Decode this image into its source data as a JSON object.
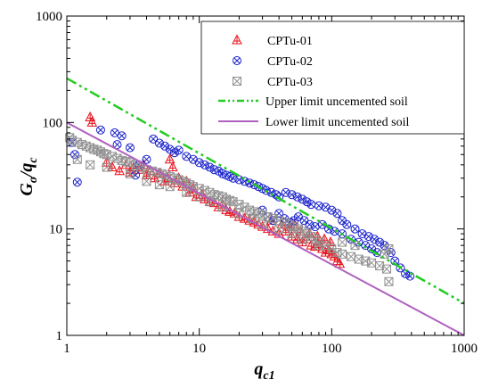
{
  "chart_data": {
    "type": "scatter",
    "xscale": "log",
    "yscale": "log",
    "xlim": [
      1,
      1000
    ],
    "ylim": [
      1,
      1000
    ],
    "xticks": [
      "1",
      "10",
      "100",
      "1000"
    ],
    "yticks": [
      "1",
      "10",
      "100",
      "1000"
    ],
    "xlabel": {
      "main": "q",
      "sub": "c1"
    },
    "ylabel": {
      "main": "G",
      "sub1": "o",
      "mid": "/q",
      "sub2": "c"
    },
    "legend_position": "top-right",
    "series": [
      {
        "name": "CPTu-01",
        "marker": "triangle-cross",
        "color": "#e8101a",
        "points": [
          [
            1.5,
            112
          ],
          [
            1.55,
            100
          ],
          [
            2.0,
            42
          ],
          [
            2.2,
            38
          ],
          [
            2.5,
            35
          ],
          [
            2.8,
            40
          ],
          [
            3.0,
            34
          ],
          [
            3.2,
            38
          ],
          [
            3.5,
            36
          ],
          [
            3.8,
            40
          ],
          [
            4.0,
            32
          ],
          [
            4.3,
            35
          ],
          [
            4.6,
            30
          ],
          [
            5.0,
            33
          ],
          [
            5.5,
            28
          ],
          [
            5.8,
            30
          ],
          [
            6.0,
            45
          ],
          [
            6.3,
            38
          ],
          [
            6.5,
            27
          ],
          [
            7.0,
            30
          ],
          [
            7.5,
            25
          ],
          [
            8.0,
            28
          ],
          [
            8.5,
            22
          ],
          [
            9.0,
            24
          ],
          [
            9.5,
            20
          ],
          [
            10.5,
            21
          ],
          [
            11.0,
            19
          ],
          [
            12.0,
            18
          ],
          [
            13.0,
            17.5
          ],
          [
            14.0,
            16
          ],
          [
            15.0,
            17
          ],
          [
            16.0,
            15
          ],
          [
            17.0,
            14.5
          ],
          [
            18.5,
            14
          ],
          [
            20.0,
            13
          ],
          [
            22.0,
            12.5
          ],
          [
            24.0,
            12
          ],
          [
            26.0,
            11.5
          ],
          [
            28.0,
            11
          ],
          [
            30.0,
            10.5
          ],
          [
            33.0,
            10
          ],
          [
            36.0,
            9.5
          ],
          [
            40.0,
            9
          ],
          [
            45.0,
            9.5
          ],
          [
            50.0,
            8.5
          ],
          [
            55.0,
            8
          ],
          [
            60.0,
            7.5
          ],
          [
            65.0,
            8
          ],
          [
            70.0,
            7
          ],
          [
            75.0,
            6.8
          ],
          [
            80.0,
            7.2
          ],
          [
            85.0,
            6.5
          ],
          [
            90.0,
            6.0
          ],
          [
            95.0,
            6.3
          ],
          [
            100.0,
            5.8
          ],
          [
            105.0,
            5.5
          ],
          [
            110.0,
            5.0
          ],
          [
            115.0,
            4.7
          ],
          [
            35.0,
            12
          ],
          [
            42.0,
            11
          ],
          [
            48.0,
            10.5
          ],
          [
            52.0,
            11
          ],
          [
            58.0,
            9.5
          ],
          [
            68.0,
            9
          ],
          [
            78.0,
            8.5
          ],
          [
            88.0,
            8
          ],
          [
            98.0,
            7.5
          ]
        ]
      },
      {
        "name": "CPTu-02",
        "marker": "circle-x",
        "color": "#1a22cc",
        "points": [
          [
            1.1,
            65
          ],
          [
            1.15,
            50
          ],
          [
            1.2,
            27.5
          ],
          [
            1.8,
            85
          ],
          [
            2.3,
            80
          ],
          [
            2.4,
            62
          ],
          [
            2.6,
            75
          ],
          [
            3.0,
            58
          ],
          [
            3.3,
            32
          ],
          [
            3.5,
            40
          ],
          [
            4.0,
            45
          ],
          [
            4.5,
            70
          ],
          [
            5.0,
            64
          ],
          [
            5.5,
            60
          ],
          [
            6.0,
            56
          ],
          [
            6.5,
            52
          ],
          [
            7.0,
            55
          ],
          [
            8.0,
            48
          ],
          [
            9.0,
            45
          ],
          [
            10.0,
            42
          ],
          [
            11.0,
            40
          ],
          [
            12.0,
            38
          ],
          [
            13.0,
            36
          ],
          [
            14.0,
            35
          ],
          [
            15.0,
            33
          ],
          [
            16.0,
            32
          ],
          [
            17.0,
            31
          ],
          [
            18.0,
            30
          ],
          [
            20.0,
            29
          ],
          [
            22.0,
            28
          ],
          [
            24.0,
            27
          ],
          [
            26.0,
            26
          ],
          [
            28.0,
            25
          ],
          [
            30.0,
            24
          ],
          [
            32.0,
            23
          ],
          [
            35.0,
            22
          ],
          [
            38.0,
            21
          ],
          [
            40.0,
            20
          ],
          [
            45.0,
            22
          ],
          [
            50.0,
            21
          ],
          [
            55.0,
            20
          ],
          [
            60.0,
            19
          ],
          [
            65.0,
            18
          ],
          [
            70.0,
            17
          ],
          [
            80.0,
            16.5
          ],
          [
            90.0,
            16
          ],
          [
            100.0,
            15
          ],
          [
            110.0,
            14
          ],
          [
            120.0,
            12
          ],
          [
            130.0,
            11
          ],
          [
            150.0,
            10
          ],
          [
            170.0,
            9
          ],
          [
            190.0,
            8.5
          ],
          [
            210.0,
            8
          ],
          [
            230.0,
            7.5
          ],
          [
            250.0,
            7
          ],
          [
            280.0,
            6
          ],
          [
            300.0,
            5
          ],
          [
            330.0,
            4.3
          ],
          [
            360.0,
            3.8
          ],
          [
            390.0,
            3.6
          ],
          [
            30.0,
            15
          ],
          [
            33.0,
            13
          ],
          [
            36.0,
            12
          ],
          [
            40.0,
            14
          ],
          [
            44.0,
            12.5
          ],
          [
            48.0,
            11.5
          ],
          [
            52.0,
            12
          ],
          [
            56.0,
            13
          ],
          [
            62.0,
            12
          ],
          [
            68.0,
            11
          ],
          [
            75.0,
            10.5
          ],
          [
            85.0,
            11
          ],
          [
            95.0,
            10
          ],
          [
            105.0,
            9.5
          ],
          [
            120.0,
            9
          ],
          [
            140.0,
            8
          ],
          [
            160.0,
            7.5
          ],
          [
            180.0,
            7
          ],
          [
            200.0,
            6.5
          ],
          [
            220.0,
            6
          ]
        ]
      },
      {
        "name": "CPTu-03",
        "marker": "square-x",
        "color": "#909090",
        "points": [
          [
            1.05,
            72
          ],
          [
            1.1,
            68
          ],
          [
            1.2,
            65
          ],
          [
            1.3,
            62
          ],
          [
            1.4,
            60
          ],
          [
            1.5,
            58
          ],
          [
            1.6,
            56
          ],
          [
            1.7,
            55
          ],
          [
            1.8,
            53
          ],
          [
            1.9,
            51
          ],
          [
            2.0,
            50
          ],
          [
            2.2,
            48
          ],
          [
            2.4,
            46
          ],
          [
            2.6,
            44
          ],
          [
            2.8,
            43
          ],
          [
            3.0,
            42
          ],
          [
            3.3,
            40
          ],
          [
            3.6,
            38
          ],
          [
            4.0,
            36
          ],
          [
            4.4,
            35
          ],
          [
            4.8,
            34
          ],
          [
            5.2,
            33
          ],
          [
            5.6,
            32
          ],
          [
            6.0,
            31
          ],
          [
            6.5,
            30
          ],
          [
            7.0,
            29
          ],
          [
            7.5,
            28
          ],
          [
            8.0,
            27
          ],
          [
            8.5,
            26
          ],
          [
            9.0,
            25
          ],
          [
            10.0,
            24
          ],
          [
            11.0,
            23
          ],
          [
            12.0,
            22
          ],
          [
            13.0,
            21
          ],
          [
            14.0,
            20.5
          ],
          [
            15.0,
            20
          ],
          [
            16.0,
            19
          ],
          [
            17.0,
            18.5
          ],
          [
            18.0,
            18
          ],
          [
            20.0,
            17
          ],
          [
            22.0,
            16
          ],
          [
            24.0,
            15
          ],
          [
            26.0,
            14.5
          ],
          [
            28.0,
            14
          ],
          [
            30.0,
            13.5
          ],
          [
            33.0,
            13
          ],
          [
            36.0,
            12.5
          ],
          [
            40.0,
            12
          ],
          [
            44.0,
            11.5
          ],
          [
            48.0,
            11
          ],
          [
            52.0,
            10.5
          ],
          [
            56.0,
            10
          ],
          [
            60.0,
            9.5
          ],
          [
            65.0,
            9
          ],
          [
            70.0,
            8.5
          ],
          [
            75.0,
            8
          ],
          [
            80.0,
            7.5
          ],
          [
            90.0,
            7
          ],
          [
            100.0,
            6.5
          ],
          [
            110.0,
            6
          ],
          [
            120.0,
            5.8
          ],
          [
            140.0,
            5.5
          ],
          [
            160.0,
            5.2
          ],
          [
            180.0,
            5.0
          ],
          [
            200.0,
            4.8
          ],
          [
            230.0,
            4.5
          ],
          [
            260.0,
            4.2
          ],
          [
            270.0,
            3.2
          ],
          [
            270.0,
            6.5
          ],
          [
            250.0,
            5.8
          ],
          [
            1.2,
            45
          ],
          [
            1.5,
            40
          ],
          [
            2.0,
            38
          ],
          [
            3.0,
            33
          ],
          [
            4.0,
            28
          ],
          [
            5.0,
            26
          ],
          [
            6.0,
            25
          ],
          [
            8.0,
            22
          ],
          [
            10.0,
            20
          ],
          [
            12.0,
            18
          ],
          [
            15.0,
            16
          ],
          [
            20.0,
            14
          ],
          [
            25.0,
            12.5
          ],
          [
            30.0,
            11
          ],
          [
            40.0,
            10
          ],
          [
            50.0,
            9
          ],
          [
            60.0,
            8
          ],
          [
            80.0,
            7
          ],
          [
            120.0,
            7.5
          ],
          [
            150.0,
            7
          ]
        ]
      }
    ],
    "lines": [
      {
        "name": "Upper limit uncemented soil",
        "style": "dash-dot-dot",
        "color": "#22cc22",
        "x": [
          1,
          1000
        ],
        "y": [
          260,
          2
        ]
      },
      {
        "name": "Lower limit uncemented soil",
        "style": "solid",
        "color": "#b060c0",
        "x": [
          1,
          1000
        ],
        "y": [
          100,
          1
        ]
      }
    ]
  }
}
